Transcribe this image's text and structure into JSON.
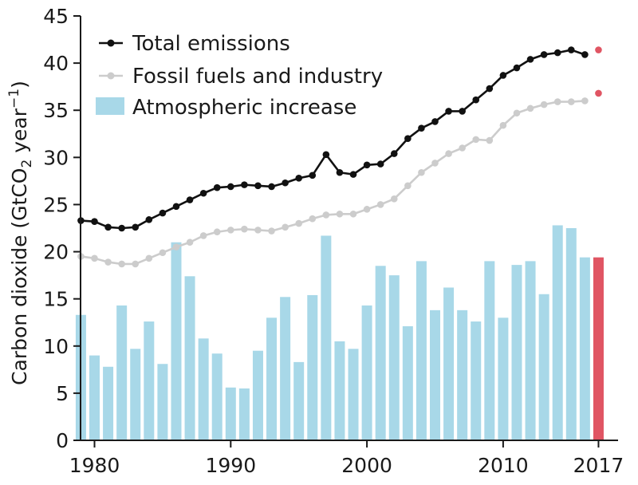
{
  "chart_data": {
    "type": "bar",
    "xlabel": "",
    "ylabel": "Carbon dioxide (GtCO₂ year⁻¹)",
    "ylabel_parts": {
      "main": "Carbon dioxide (GtCO",
      "sub": "2",
      "mid": " year",
      "sup": "−1",
      "end": ")"
    },
    "xlim": [
      1980,
      2017
    ],
    "ylim": [
      0,
      45
    ],
    "x_ticks": [
      "1980",
      "1990",
      "2000",
      "2010",
      "2017"
    ],
    "x_tick_values": [
      1980,
      1990,
      2000,
      2010,
      2017
    ],
    "y_ticks": [
      "0",
      "5",
      "10",
      "15",
      "20",
      "25",
      "30",
      "35",
      "40",
      "45"
    ],
    "y_tick_values": [
      0,
      5,
      10,
      15,
      20,
      25,
      30,
      35,
      40,
      45
    ],
    "grid": false,
    "legend_position": "top-left",
    "legend": [
      "Total emissions",
      "Fossil fuels and industry",
      "Atmospheric increase"
    ],
    "colors": {
      "total": "#111111",
      "fossil": "#cccccc",
      "bars": "#a8d8e8",
      "projection": "#e05563",
      "axis": "#1a1a1a"
    },
    "series": [
      {
        "name": "Total emissions",
        "type": "line",
        "x": [
          1979,
          1980,
          1981,
          1982,
          1983,
          1984,
          1985,
          1986,
          1987,
          1988,
          1989,
          1990,
          1991,
          1992,
          1993,
          1994,
          1995,
          1996,
          1997,
          1998,
          1999,
          2000,
          2001,
          2002,
          2003,
          2004,
          2005,
          2006,
          2007,
          2008,
          2009,
          2010,
          2011,
          2012,
          2013,
          2014,
          2015,
          2016
        ],
        "values": [
          23.3,
          23.2,
          22.6,
          22.5,
          22.6,
          23.4,
          24.1,
          24.8,
          25.5,
          26.2,
          26.8,
          26.9,
          27.1,
          27.0,
          26.9,
          27.3,
          27.8,
          28.1,
          30.3,
          28.4,
          28.2,
          29.2,
          29.3,
          30.4,
          32.0,
          33.1,
          33.8,
          34.9,
          34.9,
          36.1,
          37.3,
          38.7,
          39.5,
          40.4,
          40.9,
          41.1,
          41.4,
          40.9
        ],
        "projection": {
          "x": 2017,
          "value": 41.4
        }
      },
      {
        "name": "Fossil fuels and industry",
        "type": "line",
        "x": [
          1979,
          1980,
          1981,
          1982,
          1983,
          1984,
          1985,
          1986,
          1987,
          1988,
          1989,
          1990,
          1991,
          1992,
          1993,
          1994,
          1995,
          1996,
          1997,
          1998,
          1999,
          2000,
          2001,
          2002,
          2003,
          2004,
          2005,
          2006,
          2007,
          2008,
          2009,
          2010,
          2011,
          2012,
          2013,
          2014,
          2015,
          2016
        ],
        "values": [
          19.5,
          19.3,
          18.9,
          18.7,
          18.7,
          19.3,
          19.9,
          20.5,
          21.0,
          21.7,
          22.1,
          22.3,
          22.4,
          22.3,
          22.2,
          22.6,
          23.0,
          23.5,
          23.9,
          24.0,
          24.0,
          24.5,
          25.0,
          25.6,
          27.0,
          28.4,
          29.4,
          30.4,
          31.0,
          31.9,
          31.8,
          33.4,
          34.7,
          35.2,
          35.6,
          35.9,
          35.9,
          36.0
        ],
        "projection": {
          "x": 2017,
          "value": 36.8
        }
      },
      {
        "name": "Atmospheric increase",
        "type": "bar",
        "x": [
          1979,
          1980,
          1981,
          1982,
          1983,
          1984,
          1985,
          1986,
          1987,
          1988,
          1989,
          1990,
          1991,
          1992,
          1993,
          1994,
          1995,
          1996,
          1997,
          1998,
          1999,
          2000,
          2001,
          2002,
          2003,
          2004,
          2005,
          2006,
          2007,
          2008,
          2009,
          2010,
          2011,
          2012,
          2013,
          2014,
          2015,
          2016
        ],
        "values": [
          13.3,
          9.0,
          7.8,
          14.3,
          9.7,
          12.6,
          8.1,
          21.0,
          17.4,
          10.8,
          9.2,
          5.6,
          5.5,
          9.5,
          13.0,
          15.2,
          8.3,
          15.4,
          21.7,
          10.5,
          9.7,
          14.3,
          18.5,
          17.5,
          12.1,
          19.0,
          13.8,
          16.2,
          13.8,
          12.6,
          19.0,
          13.0,
          18.6,
          19.0,
          15.5,
          22.8,
          22.5,
          19.4
        ],
        "projection": {
          "x": 2017,
          "value": 19.4
        }
      }
    ]
  }
}
